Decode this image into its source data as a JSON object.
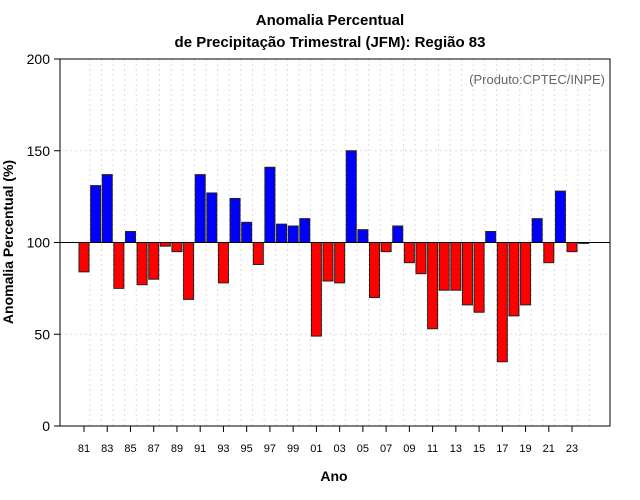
{
  "chart_data": {
    "type": "bar",
    "title": "Anomalia Percentual",
    "subtitle": "de Precipitação Trimestral (JFM): Região 83",
    "xlabel": "Ano",
    "ylabel": "Anomalia Percentual (%)",
    "annotation": "(Produto:CPTEC/INPE)",
    "ylim": [
      0,
      200
    ],
    "yticks": [
      "0",
      "50",
      "100",
      "150",
      "200"
    ],
    "baseline": 100,
    "grid": true,
    "colors": {
      "above": "#0000ff",
      "below": "#ff0000"
    },
    "categories": [
      "81",
      "82",
      "83",
      "84",
      "85",
      "86",
      "87",
      "88",
      "89",
      "90",
      "91",
      "92",
      "93",
      "94",
      "95",
      "96",
      "97",
      "98",
      "99",
      "00",
      "01",
      "02",
      "03",
      "04",
      "05",
      "06",
      "07",
      "08",
      "09",
      "10",
      "11",
      "12",
      "13",
      "14",
      "15",
      "16",
      "17",
      "18",
      "19",
      "20",
      "21",
      "22",
      "23",
      "24"
    ],
    "xtick_labels": [
      "81",
      "83",
      "85",
      "87",
      "89",
      "91",
      "93",
      "95",
      "97",
      "99",
      "01",
      "03",
      "05",
      "07",
      "09",
      "11",
      "13",
      "15",
      "17",
      "19",
      "21",
      "23"
    ],
    "values": [
      84,
      131,
      137,
      75,
      106,
      77,
      80,
      98,
      95,
      69,
      137,
      127,
      78,
      124,
      111,
      88,
      141,
      110,
      109,
      113,
      49,
      79,
      78,
      150,
      107,
      70,
      95,
      109,
      89,
      83,
      53,
      74,
      74,
      66,
      62,
      106,
      35,
      60,
      66,
      113,
      89,
      128,
      95,
      99.5
    ]
  }
}
